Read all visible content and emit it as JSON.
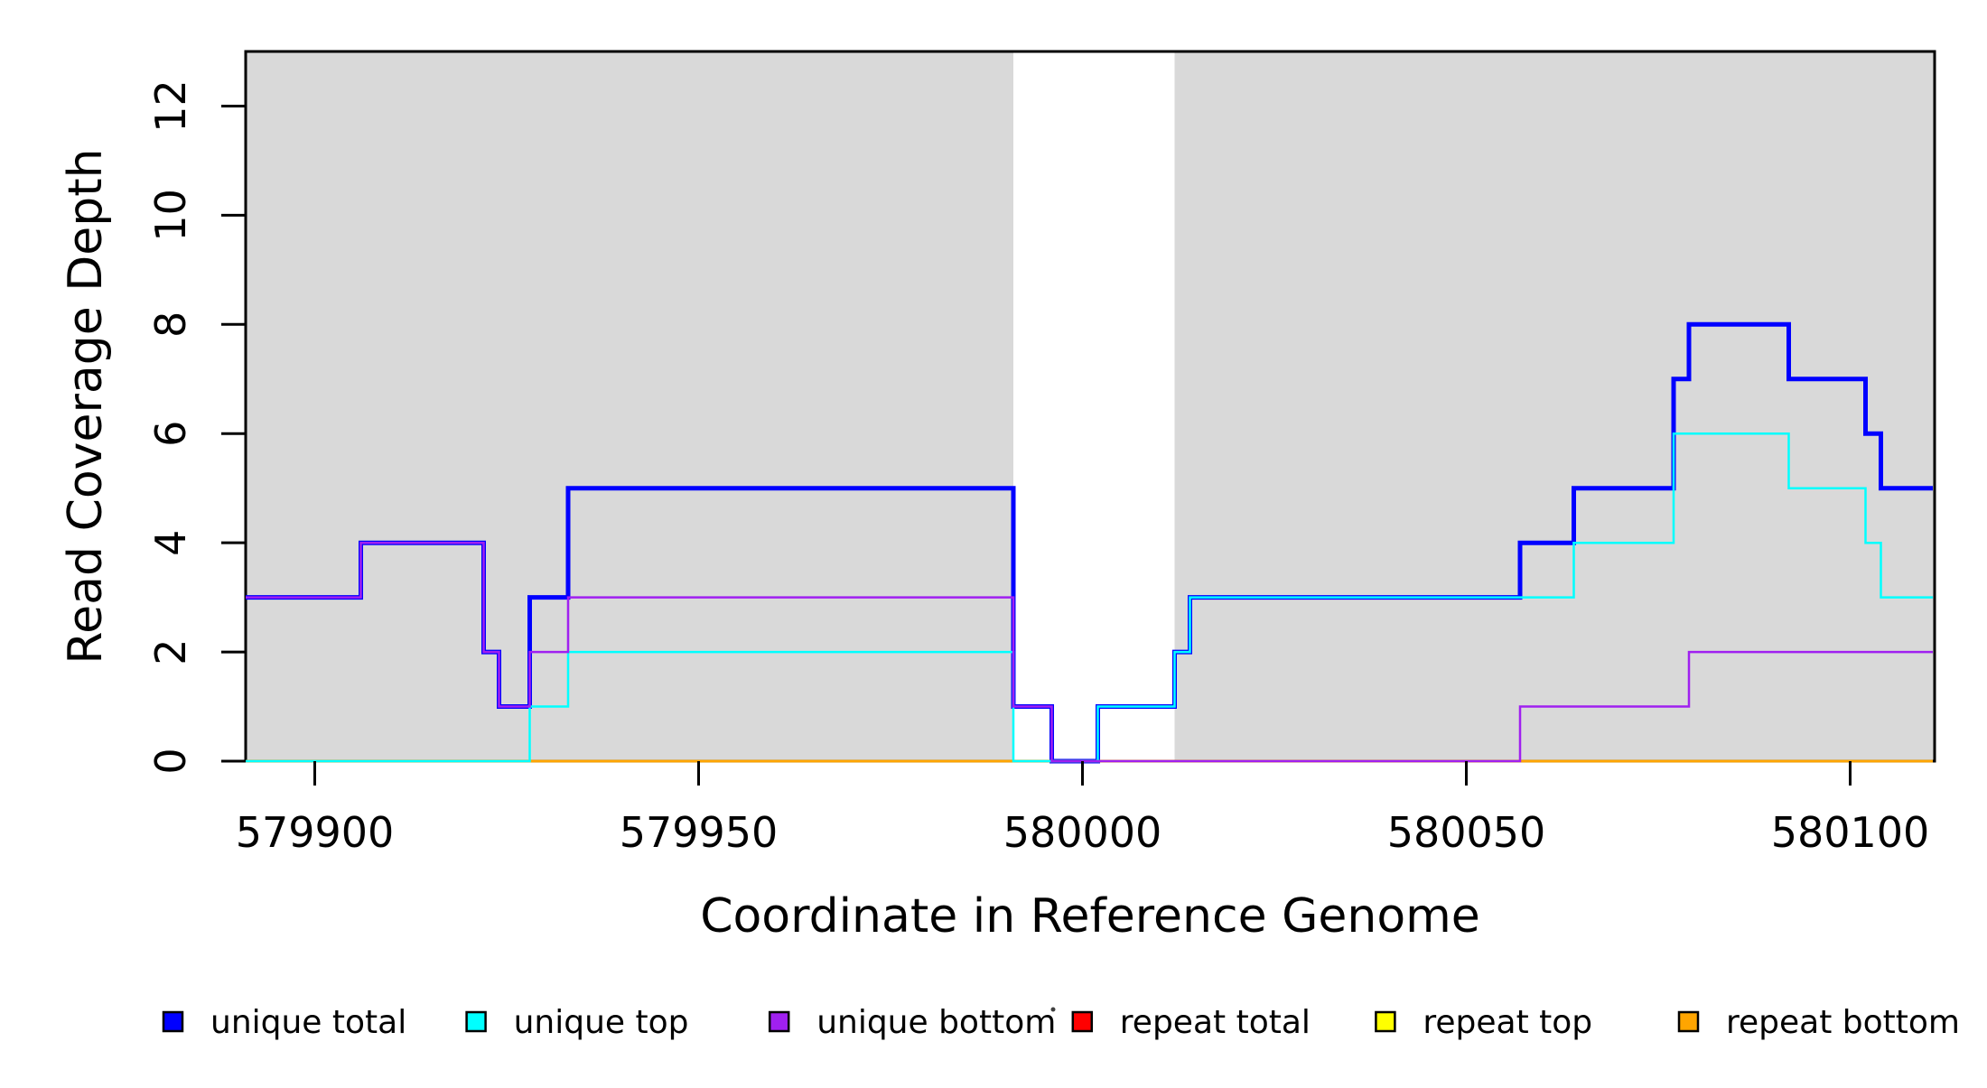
{
  "chart_data": {
    "type": "line",
    "subtype": "step",
    "title": "",
    "xlabel": "Coordinate in Reference Genome",
    "ylabel": "Read Coverage Depth",
    "xlim": [
      579891,
      580111
    ],
    "ylim": [
      0,
      13
    ],
    "grid": false,
    "x_ticks": {
      "values": [
        579900,
        579950,
        580000,
        580050,
        580100
      ],
      "labels": [
        "579900",
        "579950",
        "580000",
        "580050",
        "580100"
      ]
    },
    "y_ticks": {
      "values": [
        0,
        2,
        4,
        6,
        8,
        10,
        12
      ],
      "labels": [
        "0",
        "2",
        "4",
        "6",
        "8",
        "10",
        "12"
      ]
    },
    "shaded_regions": {
      "color": "#D9D9D9",
      "note": "gray background rectangles; white gap between 579991 and 580012",
      "x_ranges": [
        [
          579891,
          579991
        ],
        [
          580012,
          580111
        ]
      ]
    },
    "series_note": "steps = [x_position_of_change, new_value]; each value holds until next change, last value extends to xlim max; array listed in draw order (bottom to top)",
    "series": [
      {
        "name": "unique total",
        "color": "#0000FF",
        "line_width": 5,
        "steps": [
          [
            579891,
            3
          ],
          [
            579906,
            4
          ],
          [
            579922,
            2
          ],
          [
            579924,
            1
          ],
          [
            579928,
            3
          ],
          [
            579933,
            5
          ],
          [
            579991,
            1
          ],
          [
            579996,
            0
          ],
          [
            580002,
            1
          ],
          [
            580012,
            2
          ],
          [
            580014,
            3
          ],
          [
            580057,
            4
          ],
          [
            580064,
            5
          ],
          [
            580077,
            7
          ],
          [
            580079,
            8
          ],
          [
            580092,
            7
          ],
          [
            580102,
            6
          ],
          [
            580104,
            5
          ]
        ]
      },
      {
        "name": "repeat total",
        "color": "#FF0000",
        "line_width": 2.5,
        "steps": [
          [
            579891,
            0
          ]
        ]
      },
      {
        "name": "repeat top",
        "color": "#FFFF00",
        "line_width": 2.5,
        "steps": [
          [
            579891,
            0
          ]
        ]
      },
      {
        "name": "repeat bottom",
        "color": "#FFA500",
        "line_width": 2.5,
        "steps": [
          [
            579891,
            0
          ]
        ]
      },
      {
        "name": "unique top",
        "color": "#00FFFF",
        "line_width": 2.5,
        "steps": [
          [
            579891,
            0
          ],
          [
            579928,
            1
          ],
          [
            579933,
            2
          ],
          [
            579991,
            0
          ],
          [
            580002,
            1
          ],
          [
            580012,
            2
          ],
          [
            580014,
            3
          ],
          [
            580064,
            4
          ],
          [
            580077,
            6
          ],
          [
            580092,
            5
          ],
          [
            580102,
            4
          ],
          [
            580104,
            3
          ]
        ]
      },
      {
        "name": "unique bottom",
        "color": "#A020F0",
        "line_width": 2.5,
        "steps": [
          [
            579891,
            3
          ],
          [
            579906,
            4
          ],
          [
            579922,
            2
          ],
          [
            579924,
            1
          ],
          [
            579928,
            2
          ],
          [
            579933,
            3
          ],
          [
            579991,
            1
          ],
          [
            579996,
            0
          ],
          [
            580057,
            1
          ],
          [
            580079,
            2
          ]
        ]
      }
    ],
    "legend": {
      "position": "bottom",
      "items": [
        {
          "label": "unique total",
          "color": "#0000FF"
        },
        {
          "label": "unique top",
          "color": "#00FFFF"
        },
        {
          "label": "unique bottom",
          "color": "#A020F0"
        },
        {
          "label": "repeat total",
          "color": "#FF0000"
        },
        {
          "label": "repeat top",
          "color": "#FFFF00"
        },
        {
          "label": "repeat bottom",
          "color": "#FFA500"
        }
      ]
    }
  }
}
